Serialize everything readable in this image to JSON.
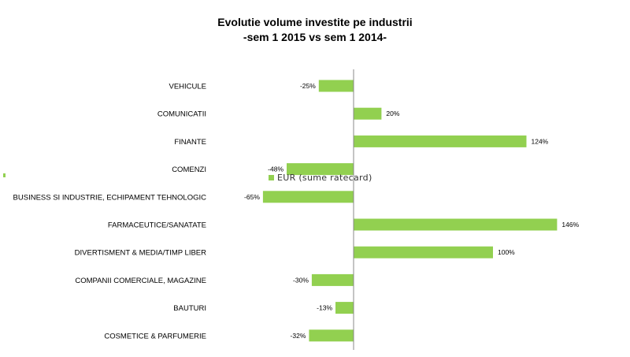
{
  "chart_data": {
    "type": "bar",
    "orientation": "horizontal",
    "title": [
      "Evolutie volume investite pe industrii",
      "-sem 1 2015 vs sem 1 2014-"
    ],
    "categories": [
      "VEHICULE",
      "COMUNICATII",
      "FINANTE",
      "COMENZI",
      "BUSINESS SI INDUSTRIE, ECHIPAMENT TEHNOLOGIC",
      "FARMACEUTICE/SANATATE",
      "DIVERTISMENT & MEDIA/TIMP LIBER",
      "COMPANII COMERCIALE, MAGAZINE",
      "BAUTURI",
      "COSMETICE & PARFUMERIE"
    ],
    "series": [
      {
        "name": "EUR (sume ratecard)",
        "values": [
          -25,
          20,
          124,
          -48,
          -65,
          146,
          100,
          -30,
          -13,
          -32
        ],
        "labels": [
          "-25%",
          "20%",
          "124%",
          "-48%",
          "-65%",
          "146%",
          "100%",
          "-30%",
          "-13%",
          "-32%"
        ]
      }
    ],
    "unit": "%",
    "legend_position": "overlapping plot, near COMENZI row",
    "grid": false,
    "colors": {
      "bar": "#92d050",
      "axis": "#888888",
      "text": "#000000"
    }
  }
}
